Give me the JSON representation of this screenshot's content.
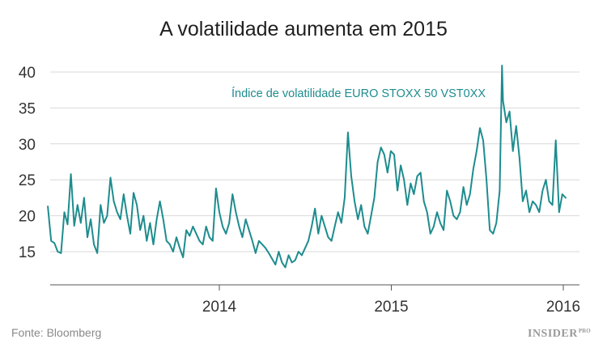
{
  "title": "A volatilidade aumenta em 2015",
  "source": "Fonte: Bloomberg",
  "logo": {
    "word": "INSIDER",
    "suffix": "PRO"
  },
  "colors": {
    "series": "#1e8c8e",
    "axis_text": "#333333",
    "grid": "#d8d8d8"
  },
  "chart_data": {
    "type": "line",
    "title": "A volatilidade aumenta em 2015",
    "xlabel": "",
    "ylabel": "",
    "x_ticks": [
      "2014",
      "2015",
      "2016"
    ],
    "y_ticks": [
      15,
      20,
      25,
      30,
      35,
      40
    ],
    "xlim": [
      "2013-01-01",
      "2016-01-15"
    ],
    "ylim": [
      11,
      42
    ],
    "grid": "horizontal",
    "annotation": "Índice de volatilidade EURO STOXX 50 VST0XX",
    "series": [
      {
        "name": "Índice de volatilidade EURO STOXX 50 VST0XX",
        "x": [
          "2013-01-02",
          "2013-01-09",
          "2013-01-16",
          "2013-01-23",
          "2013-01-30",
          "2013-02-06",
          "2013-02-13",
          "2013-02-20",
          "2013-02-27",
          "2013-03-06",
          "2013-03-13",
          "2013-03-20",
          "2013-03-27",
          "2013-04-03",
          "2013-04-10",
          "2013-04-17",
          "2013-04-24",
          "2013-05-01",
          "2013-05-08",
          "2013-05-15",
          "2013-05-22",
          "2013-05-29",
          "2013-06-05",
          "2013-06-12",
          "2013-06-19",
          "2013-06-26",
          "2013-07-03",
          "2013-07-10",
          "2013-07-17",
          "2013-07-24",
          "2013-07-31",
          "2013-08-07",
          "2013-08-14",
          "2013-08-21",
          "2013-08-28",
          "2013-09-04",
          "2013-09-11",
          "2013-09-18",
          "2013-09-25",
          "2013-10-02",
          "2013-10-09",
          "2013-10-16",
          "2013-10-23",
          "2013-10-30",
          "2013-11-06",
          "2013-11-13",
          "2013-11-20",
          "2013-11-27",
          "2013-12-04",
          "2013-12-11",
          "2013-12-18",
          "2013-12-25",
          "2014-01-01",
          "2014-01-08",
          "2014-01-15",
          "2014-01-22",
          "2014-01-29",
          "2014-02-05",
          "2014-02-12",
          "2014-02-19",
          "2014-02-26",
          "2014-03-05",
          "2014-03-12",
          "2014-03-19",
          "2014-03-26",
          "2014-04-02",
          "2014-04-09",
          "2014-04-16",
          "2014-04-23",
          "2014-04-30",
          "2014-05-07",
          "2014-05-14",
          "2014-05-21",
          "2014-05-28",
          "2014-06-04",
          "2014-06-11",
          "2014-06-18",
          "2014-06-25",
          "2014-07-02",
          "2014-07-09",
          "2014-07-16",
          "2014-07-23",
          "2014-07-30",
          "2014-08-06",
          "2014-08-13",
          "2014-08-20",
          "2014-08-27",
          "2014-09-03",
          "2014-09-10",
          "2014-09-17",
          "2014-09-24",
          "2014-10-01",
          "2014-10-08",
          "2014-10-15",
          "2014-10-22",
          "2014-10-29",
          "2014-11-05",
          "2014-11-12",
          "2014-11-19",
          "2014-11-26",
          "2014-12-03",
          "2014-12-10",
          "2014-12-17",
          "2014-12-24",
          "2014-12-31",
          "2015-01-07",
          "2015-01-14",
          "2015-01-21",
          "2015-01-28",
          "2015-02-04",
          "2015-02-11",
          "2015-02-18",
          "2015-02-25",
          "2015-03-04",
          "2015-03-11",
          "2015-03-18",
          "2015-03-25",
          "2015-04-01",
          "2015-04-08",
          "2015-04-15",
          "2015-04-22",
          "2015-04-29",
          "2015-05-06",
          "2015-05-13",
          "2015-05-20",
          "2015-05-27",
          "2015-06-03",
          "2015-06-10",
          "2015-06-17",
          "2015-06-24",
          "2015-07-01",
          "2015-07-08",
          "2015-07-15",
          "2015-07-22",
          "2015-07-29",
          "2015-08-05",
          "2015-08-12",
          "2015-08-19",
          "2015-08-24",
          "2015-08-26",
          "2015-09-02",
          "2015-09-09",
          "2015-09-16",
          "2015-09-23",
          "2015-09-30",
          "2015-10-07",
          "2015-10-14",
          "2015-10-21",
          "2015-10-28",
          "2015-11-04",
          "2015-11-11",
          "2015-11-18",
          "2015-11-25",
          "2015-12-02",
          "2015-12-09",
          "2015-12-16",
          "2015-12-23",
          "2015-12-30",
          "2016-01-06"
        ],
        "values": [
          21.3,
          16.5,
          16.2,
          15.0,
          14.8,
          20.5,
          18.8,
          25.8,
          18.6,
          21.5,
          19.0,
          22.5,
          17.0,
          19.5,
          16.0,
          14.8,
          21.5,
          19.0,
          20.0,
          25.3,
          22.0,
          20.5,
          19.5,
          23.0,
          20.0,
          17.5,
          23.2,
          21.5,
          18.0,
          20.0,
          16.5,
          19.0,
          16.0,
          19.5,
          22.0,
          19.5,
          16.5,
          16.0,
          15.0,
          17.0,
          15.5,
          14.2,
          18.0,
          17.2,
          18.5,
          17.5,
          16.5,
          16.0,
          18.5,
          17.0,
          16.5,
          23.8,
          20.5,
          18.5,
          17.5,
          19.0,
          23.0,
          20.5,
          18.5,
          17.0,
          19.5,
          18.0,
          16.5,
          14.8,
          16.5,
          16.0,
          15.5,
          14.8,
          14.0,
          13.2,
          15.0,
          13.5,
          12.8,
          14.5,
          13.5,
          13.8,
          15.0,
          14.5,
          15.5,
          16.5,
          18.5,
          21.0,
          17.5,
          20.0,
          18.5,
          17.0,
          16.5,
          18.5,
          20.5,
          19.0,
          22.5,
          31.6,
          25.5,
          22.0,
          19.5,
          21.5,
          18.5,
          17.5,
          20.0,
          22.5,
          27.5,
          29.5,
          28.5,
          26.0,
          29.0,
          28.5,
          23.5,
          27.0,
          25.0,
          21.5,
          24.5,
          23.0,
          25.5,
          26.0,
          22.0,
          20.5,
          17.5,
          18.5,
          20.5,
          19.0,
          18.0,
          23.5,
          22.0,
          20.0,
          19.5,
          20.5,
          24.0,
          21.5,
          23.0,
          26.5,
          29.0,
          32.2,
          30.5,
          25.0,
          18.0,
          17.5,
          19.0,
          23.5,
          40.9,
          36.0,
          33.0,
          34.5,
          29.0,
          32.5,
          28.0,
          22.0,
          23.5,
          20.5,
          22.0,
          21.5,
          20.5,
          23.5,
          25.0,
          22.0,
          21.5,
          30.5,
          20.5,
          23.0,
          22.5
        ]
      }
    ]
  }
}
